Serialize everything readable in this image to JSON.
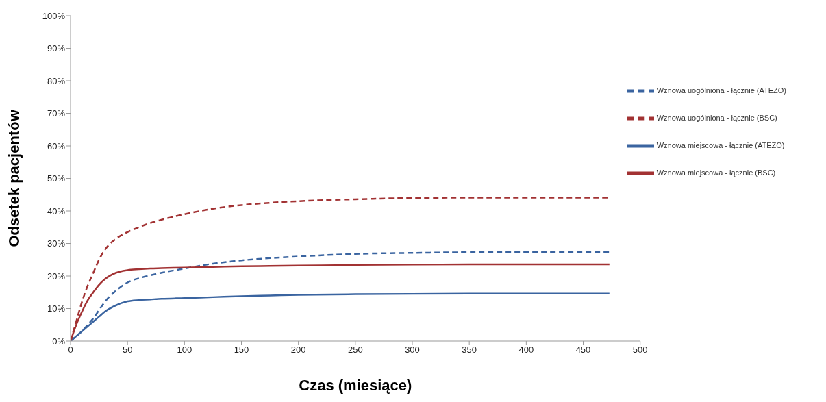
{
  "chart_data": {
    "type": "line",
    "xlabel": "Czas (miesiące)",
    "ylabel": "Odsetek pacjentów",
    "x": [
      0,
      5,
      10,
      15,
      20,
      25,
      30,
      40,
      50,
      60,
      70,
      80,
      100,
      125,
      150,
      175,
      200,
      250,
      300,
      350,
      400,
      473
    ],
    "series": [
      {
        "name": "Wznowa uogólniona - łącznie (ATEZO)",
        "color": "#3a64a0",
        "line_style": "dashed",
        "values": [
          0,
          1.5,
          3,
          5,
          7,
          9.5,
          12,
          15.5,
          18,
          19.3,
          20.2,
          21,
          22.3,
          23.8,
          24.8,
          25.5,
          26,
          26.8,
          27.1,
          27.3,
          27.3,
          27.4
        ]
      },
      {
        "name": "Wznowa uogólniona - łącznie (BSC)",
        "color": "#a23233",
        "line_style": "dashed",
        "values": [
          0,
          6,
          12,
          17,
          21,
          25,
          28,
          31.5,
          33.5,
          35,
          36.3,
          37.3,
          39,
          40.7,
          41.8,
          42.5,
          43,
          43.6,
          44,
          44.1,
          44.1,
          44.1
        ]
      },
      {
        "name": "Wznowa miejscowa - łącznie (ATEZO)",
        "color": "#3a64a0",
        "line_style": "solid",
        "values": [
          0,
          1.5,
          3,
          4.5,
          6,
          7.5,
          9,
          11,
          12.2,
          12.6,
          12.8,
          13,
          13.2,
          13.5,
          13.8,
          14,
          14.2,
          14.4,
          14.5,
          14.6,
          14.6,
          14.6
        ]
      },
      {
        "name": "Wznowa miejscowa - łącznie (BSC)",
        "color": "#a23233",
        "line_style": "solid",
        "values": [
          0,
          5,
          9,
          12.5,
          15,
          17.3,
          19,
          21,
          21.8,
          22.1,
          22.3,
          22.4,
          22.6,
          22.8,
          23,
          23.1,
          23.2,
          23.4,
          23.5,
          23.6,
          23.6,
          23.6
        ]
      }
    ],
    "xlim": [
      0,
      500
    ],
    "xticks": [
      0,
      50,
      100,
      150,
      200,
      250,
      300,
      350,
      400,
      450,
      500
    ],
    "ylim": [
      0,
      100
    ],
    "yticks": [
      {
        "value": 0,
        "label": "0%"
      },
      {
        "value": 10,
        "label": "10%"
      },
      {
        "value": 20,
        "label": "20%"
      },
      {
        "value": 30,
        "label": "30%"
      },
      {
        "value": 40,
        "label": "40%"
      },
      {
        "value": 50,
        "label": "50%"
      },
      {
        "value": 60,
        "label": "60%"
      },
      {
        "value": 70,
        "label": "70%"
      },
      {
        "value": 80,
        "label": "80%"
      },
      {
        "value": 90,
        "label": "90%"
      },
      {
        "value": 100,
        "label": "100%"
      }
    ],
    "grid": false,
    "legend": "top right",
    "marker": "none"
  }
}
